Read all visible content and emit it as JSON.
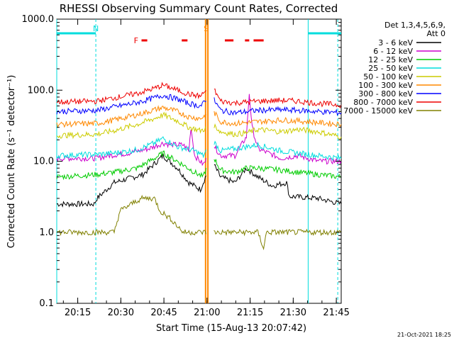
{
  "chart_data": {
    "type": "line",
    "title": "RHESSI Observing Summary Count Rates, Corrected",
    "xlabel": "Start Time (15-Aug-13 20:07:42)",
    "ylabel": "Corrected Count Rate (s⁻¹ detector⁻¹)",
    "yscale": "log",
    "ylim": [
      0.1,
      1000
    ],
    "xlim_minutes": [
      0,
      99
    ],
    "x_start": "20:07:42",
    "x_ticks": [
      {
        "label": "20:15",
        "t": 7.3
      },
      {
        "label": "20:30",
        "t": 22.3
      },
      {
        "label": "20:45",
        "t": 37.3
      },
      {
        "label": "21:00",
        "t": 52.3
      },
      {
        "label": "21:15",
        "t": 67.3
      },
      {
        "label": "21:30",
        "t": 82.3
      },
      {
        "label": "21:45",
        "t": 97.3
      }
    ],
    "y_ticks": [
      {
        "label": "1000.0",
        "v": 1000
      },
      {
        "label": "100.0",
        "v": 100
      },
      {
        "label": "10.0",
        "v": 10
      },
      {
        "label": "1.0",
        "v": 1
      },
      {
        "label": "0.1",
        "v": 0.1
      }
    ],
    "legend_header": [
      "Det 1,3,4,5,6,9,",
      "Att 0"
    ],
    "legend_position": "right",
    "footer_date": "21-Oct-2021 18:25",
    "series": [
      {
        "name": "3 - 6 keV",
        "color": "#000000",
        "points": [
          [
            0,
            2.5
          ],
          [
            13,
            2.5
          ],
          [
            14,
            3
          ],
          [
            20,
            5
          ],
          [
            30,
            6.5
          ],
          [
            37,
            12
          ],
          [
            42,
            8
          ],
          [
            46,
            5
          ],
          [
            50,
            4
          ],
          [
            53,
            8
          ],
          [
            53.5,
            11
          ],
          [
            57,
            6
          ],
          [
            62,
            5
          ],
          [
            66,
            8
          ],
          [
            70,
            6
          ],
          [
            75,
            4.5
          ],
          [
            80,
            5
          ],
          [
            81,
            3.2
          ],
          [
            91,
            3
          ],
          [
            99,
            2.5
          ]
        ]
      },
      {
        "name": "6 - 12 keV",
        "color": "#cc00cc",
        "points": [
          [
            0,
            11
          ],
          [
            14,
            11
          ],
          [
            18,
            12
          ],
          [
            25,
            13
          ],
          [
            32,
            15
          ],
          [
            37,
            18
          ],
          [
            40,
            17
          ],
          [
            44,
            17
          ],
          [
            46,
            14
          ],
          [
            46.7,
            30
          ],
          [
            48,
            12
          ],
          [
            51,
            9
          ],
          [
            53,
            12
          ],
          [
            53.5,
            20
          ],
          [
            57,
            12
          ],
          [
            62,
            12
          ],
          [
            66,
            22
          ],
          [
            67,
            90
          ],
          [
            68,
            30
          ],
          [
            70,
            15
          ],
          [
            78,
            11
          ],
          [
            84,
            12
          ],
          [
            91,
            10
          ],
          [
            99,
            10
          ]
        ]
      },
      {
        "name": "12 - 25 keV",
        "color": "#00cc00",
        "points": [
          [
            0,
            6
          ],
          [
            14,
            6.5
          ],
          [
            20,
            7
          ],
          [
            28,
            8
          ],
          [
            34,
            11
          ],
          [
            37,
            13
          ],
          [
            42,
            10
          ],
          [
            48,
            7
          ],
          [
            51,
            6
          ],
          [
            53,
            10
          ],
          [
            53.5,
            14
          ],
          [
            57,
            7.5
          ],
          [
            62,
            7
          ],
          [
            66,
            8
          ],
          [
            70,
            8
          ],
          [
            78,
            7.5
          ],
          [
            84,
            7
          ],
          [
            91,
            6.5
          ],
          [
            99,
            6
          ]
        ]
      },
      {
        "name": "25 - 50 keV",
        "color": "#00dddd",
        "points": [
          [
            0,
            12
          ],
          [
            14,
            12.5
          ],
          [
            20,
            13
          ],
          [
            28,
            14.5
          ],
          [
            34,
            18
          ],
          [
            37,
            21
          ],
          [
            42,
            16
          ],
          [
            48,
            14
          ],
          [
            51,
            12
          ],
          [
            53,
            16
          ],
          [
            53.5,
            22
          ],
          [
            57,
            14
          ],
          [
            62,
            15
          ],
          [
            66,
            16
          ],
          [
            70,
            17
          ],
          [
            78,
            14
          ],
          [
            84,
            13
          ],
          [
            91,
            12
          ],
          [
            99,
            11
          ]
        ]
      },
      {
        "name": "50 - 100 keV",
        "color": "#cccc00",
        "points": [
          [
            0,
            23
          ],
          [
            14,
            24
          ],
          [
            20,
            27
          ],
          [
            28,
            33
          ],
          [
            34,
            40
          ],
          [
            37,
            45
          ],
          [
            42,
            37
          ],
          [
            46,
            30
          ],
          [
            50,
            27
          ],
          [
            53,
            30
          ],
          [
            53.5,
            36
          ],
          [
            57,
            26
          ],
          [
            62,
            24
          ],
          [
            66,
            25
          ],
          [
            70,
            28
          ],
          [
            78,
            26
          ],
          [
            84,
            28
          ],
          [
            91,
            26
          ],
          [
            99,
            22
          ]
        ]
      },
      {
        "name": "100 - 300 keV",
        "color": "#ff8800",
        "points": [
          [
            0,
            33
          ],
          [
            14,
            34
          ],
          [
            20,
            38
          ],
          [
            28,
            45
          ],
          [
            34,
            53
          ],
          [
            37,
            57
          ],
          [
            42,
            50
          ],
          [
            46,
            42
          ],
          [
            50,
            40
          ],
          [
            53,
            47
          ],
          [
            53.5,
            58
          ],
          [
            57,
            36
          ],
          [
            62,
            34
          ],
          [
            66,
            35
          ],
          [
            70,
            36
          ],
          [
            78,
            38
          ],
          [
            84,
            37
          ],
          [
            91,
            35
          ],
          [
            99,
            33
          ]
        ]
      },
      {
        "name": "300 - 800 keV",
        "color": "#0000ff",
        "points": [
          [
            0,
            50
          ],
          [
            14,
            52
          ],
          [
            20,
            58
          ],
          [
            28,
            67
          ],
          [
            34,
            78
          ],
          [
            37,
            85
          ],
          [
            42,
            75
          ],
          [
            46,
            65
          ],
          [
            50,
            60
          ],
          [
            53,
            75
          ],
          [
            53.5,
            88
          ],
          [
            57,
            52
          ],
          [
            62,
            48
          ],
          [
            66,
            50
          ],
          [
            70,
            52
          ],
          [
            78,
            53
          ],
          [
            84,
            52
          ],
          [
            91,
            50
          ],
          [
            99,
            48
          ]
        ]
      },
      {
        "name": "800 - 7000 keV",
        "color": "#ee0000",
        "points": [
          [
            0,
            68
          ],
          [
            14,
            70
          ],
          [
            20,
            78
          ],
          [
            28,
            90
          ],
          [
            34,
            106
          ],
          [
            37,
            118
          ],
          [
            42,
            100
          ],
          [
            46,
            88
          ],
          [
            50,
            82
          ],
          [
            53,
            110
          ],
          [
            53.5,
            128
          ],
          [
            57,
            70
          ],
          [
            62,
            66
          ],
          [
            66,
            68
          ],
          [
            70,
            70
          ],
          [
            78,
            72
          ],
          [
            84,
            70
          ],
          [
            91,
            65
          ],
          [
            99,
            62
          ]
        ]
      },
      {
        "name": "7000 - 15000 keV",
        "color": "#808000",
        "points": [
          [
            0,
            1
          ],
          [
            14,
            1
          ],
          [
            20,
            1
          ],
          [
            22,
            2
          ],
          [
            28,
            2.8
          ],
          [
            30,
            3
          ],
          [
            34,
            3
          ],
          [
            36,
            2
          ],
          [
            40,
            1.5
          ],
          [
            44,
            1
          ],
          [
            53,
            1
          ],
          [
            57,
            1
          ],
          [
            70,
            1
          ],
          [
            72,
            0.6
          ],
          [
            73,
            1
          ],
          [
            99,
            1
          ]
        ]
      }
    ],
    "annotations": {
      "markers": [
        {
          "label": "N",
          "t": 13.6,
          "color": "#00dddd"
        },
        {
          "label": "F",
          "t": 27.6,
          "color": "#ee0000"
        },
        {
          "label": "S",
          "t": 52.0,
          "color": "#ff8800"
        }
      ],
      "flare_bars_minutes": [
        [
          29.5,
          31.5
        ],
        [
          43.5,
          45.5
        ],
        [
          58.5,
          61.5
        ],
        [
          65.5,
          67.0
        ],
        [
          68.5,
          72.0
        ]
      ],
      "night_bars_minutes": [
        [
          0,
          13.6
        ],
        [
          87.5,
          99
        ]
      ]
    }
  }
}
